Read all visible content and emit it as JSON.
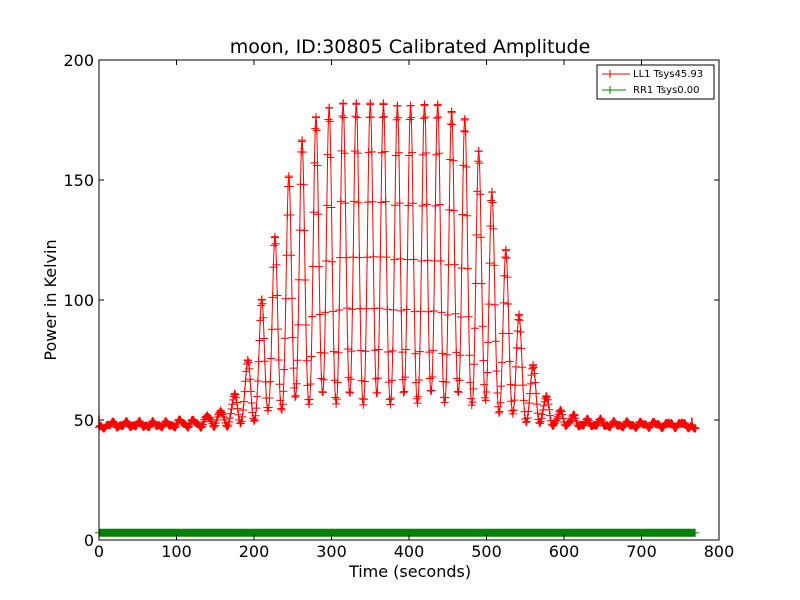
{
  "chart_data": {
    "type": "line",
    "title": "moon, ID:30805 Calibrated Amplitude",
    "xlabel": "Time (seconds)",
    "ylabel": "Power in Kelvin",
    "xlim": [
      0,
      800
    ],
    "ylim": [
      0,
      200
    ],
    "xticks": [
      "0",
      "100",
      "200",
      "300",
      "400",
      "500",
      "600",
      "700",
      "800"
    ],
    "yticks": [
      "0",
      "50",
      "100",
      "150",
      "200"
    ],
    "grid": false,
    "legend_position": "top-right",
    "series": [
      {
        "name": "LL1 Tsys45.93",
        "color": "#ff0000",
        "marker": "plus",
        "baseline": 47,
        "span": [
          0,
          770
        ],
        "oscillation_period": 17.5,
        "peaks": [
          {
            "x": 17,
            "y": 49
          },
          {
            "x": 35,
            "y": 49
          },
          {
            "x": 52,
            "y": 49
          },
          {
            "x": 70,
            "y": 49
          },
          {
            "x": 87,
            "y": 49
          },
          {
            "x": 105,
            "y": 50
          },
          {
            "x": 122,
            "y": 50
          },
          {
            "x": 140,
            "y": 52
          },
          {
            "x": 157,
            "y": 54
          },
          {
            "x": 175,
            "y": 61
          },
          {
            "x": 192,
            "y": 75
          },
          {
            "x": 210,
            "y": 100
          },
          {
            "x": 227,
            "y": 126
          },
          {
            "x": 245,
            "y": 151
          },
          {
            "x": 262,
            "y": 166
          },
          {
            "x": 280,
            "y": 176
          },
          {
            "x": 297,
            "y": 180
          },
          {
            "x": 315,
            "y": 182
          },
          {
            "x": 332,
            "y": 182
          },
          {
            "x": 350,
            "y": 182
          },
          {
            "x": 367,
            "y": 182
          },
          {
            "x": 385,
            "y": 181
          },
          {
            "x": 402,
            "y": 181
          },
          {
            "x": 420,
            "y": 181
          },
          {
            "x": 437,
            "y": 181
          },
          {
            "x": 455,
            "y": 178
          },
          {
            "x": 472,
            "y": 175
          },
          {
            "x": 490,
            "y": 162
          },
          {
            "x": 507,
            "y": 145
          },
          {
            "x": 525,
            "y": 121
          },
          {
            "x": 542,
            "y": 94
          },
          {
            "x": 560,
            "y": 73
          },
          {
            "x": 577,
            "y": 60
          },
          {
            "x": 595,
            "y": 54
          },
          {
            "x": 612,
            "y": 52
          },
          {
            "x": 630,
            "y": 50
          },
          {
            "x": 647,
            "y": 50
          },
          {
            "x": 665,
            "y": 49
          },
          {
            "x": 682,
            "y": 49
          },
          {
            "x": 700,
            "y": 49
          },
          {
            "x": 717,
            "y": 49
          },
          {
            "x": 735,
            "y": 49
          },
          {
            "x": 752,
            "y": 49
          }
        ]
      },
      {
        "name": "RR1 Tsys0.00",
        "color": "#008000",
        "marker": "plus",
        "x": [
          0,
          770
        ],
        "values": [
          3,
          3
        ]
      }
    ]
  }
}
